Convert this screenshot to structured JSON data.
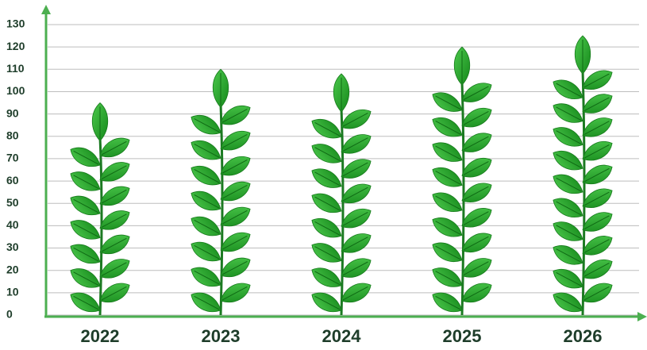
{
  "chart_data": {
    "type": "pictorial-bar",
    "categories": [
      "2022",
      "2023",
      "2024",
      "2025",
      "2026"
    ],
    "values": [
      95,
      110,
      108,
      120,
      125
    ],
    "color": "#2aa52a",
    "ylim": [
      0,
      130
    ],
    "yticks": [
      0,
      10,
      20,
      30,
      40,
      50,
      60,
      70,
      80,
      90,
      100,
      110,
      120,
      130
    ],
    "grid": true
  }
}
